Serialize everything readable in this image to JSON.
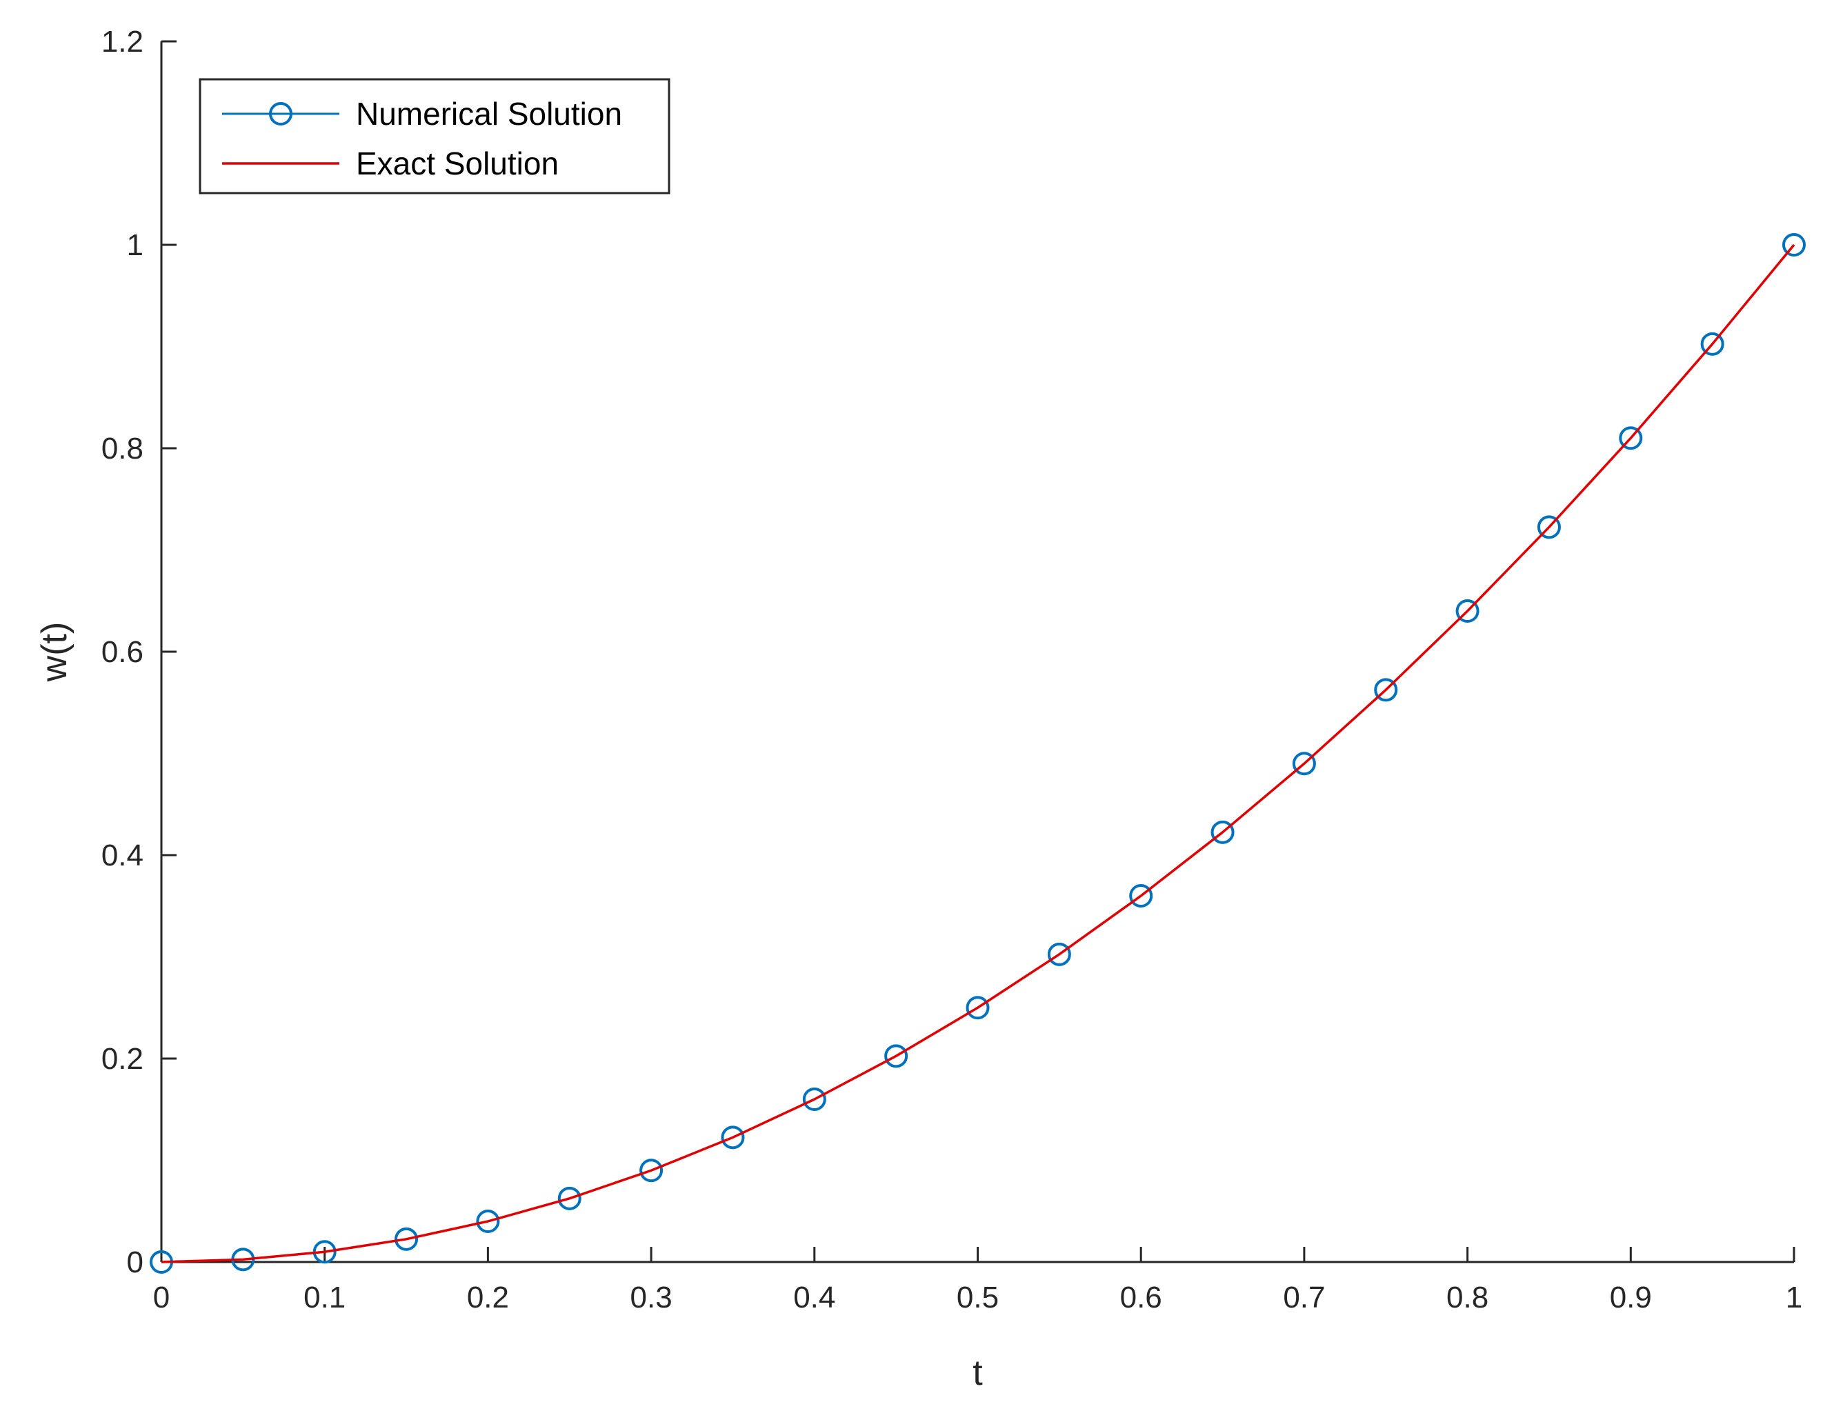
{
  "chart_data": {
    "type": "line",
    "xlabel": "t",
    "ylabel": "w(t)",
    "xlim": [
      0,
      1
    ],
    "ylim": [
      0,
      1.2
    ],
    "xticks": [
      0,
      0.1,
      0.2,
      0.3,
      0.4,
      0.5,
      0.6,
      0.7,
      0.8,
      0.9,
      1
    ],
    "xtick_labels": [
      "0",
      "0.1",
      "0.2",
      "0.3",
      "0.4",
      "0.5",
      "0.6",
      "0.7",
      "0.8",
      "0.9",
      "1"
    ],
    "yticks": [
      0,
      0.2,
      0.4,
      0.6,
      0.8,
      1,
      1.2
    ],
    "ytick_labels": [
      "0",
      "0.2",
      "0.4",
      "0.6",
      "0.8",
      "1",
      "1.2"
    ],
    "grid": false,
    "legend": {
      "placement": "top-left"
    },
    "series": [
      {
        "name": "Numerical Solution",
        "style": "line-circle-markers",
        "color": "#0072BD",
        "x": [
          0,
          0.05,
          0.1,
          0.15,
          0.2,
          0.25,
          0.3,
          0.35,
          0.4,
          0.45,
          0.5,
          0.55,
          0.6,
          0.65,
          0.7,
          0.75,
          0.8,
          0.85,
          0.9,
          0.95,
          1
        ],
        "y": [
          0,
          0.0025,
          0.01,
          0.0225,
          0.04,
          0.0625,
          0.09,
          0.1225,
          0.16,
          0.2025,
          0.25,
          0.3025,
          0.36,
          0.4225,
          0.49,
          0.5625,
          0.64,
          0.7225,
          0.81,
          0.9025,
          1
        ]
      },
      {
        "name": "Exact Solution",
        "style": "line",
        "color": "#E00000",
        "x": [
          0,
          0.05,
          0.1,
          0.15,
          0.2,
          0.25,
          0.3,
          0.35,
          0.4,
          0.45,
          0.5,
          0.55,
          0.6,
          0.65,
          0.7,
          0.75,
          0.8,
          0.85,
          0.9,
          0.95,
          1
        ],
        "y": [
          0,
          0.0025,
          0.01,
          0.0225,
          0.04,
          0.0625,
          0.09,
          0.1225,
          0.16,
          0.2025,
          0.25,
          0.3025,
          0.36,
          0.4225,
          0.49,
          0.5625,
          0.64,
          0.7225,
          0.81,
          0.9025,
          1
        ]
      }
    ]
  }
}
